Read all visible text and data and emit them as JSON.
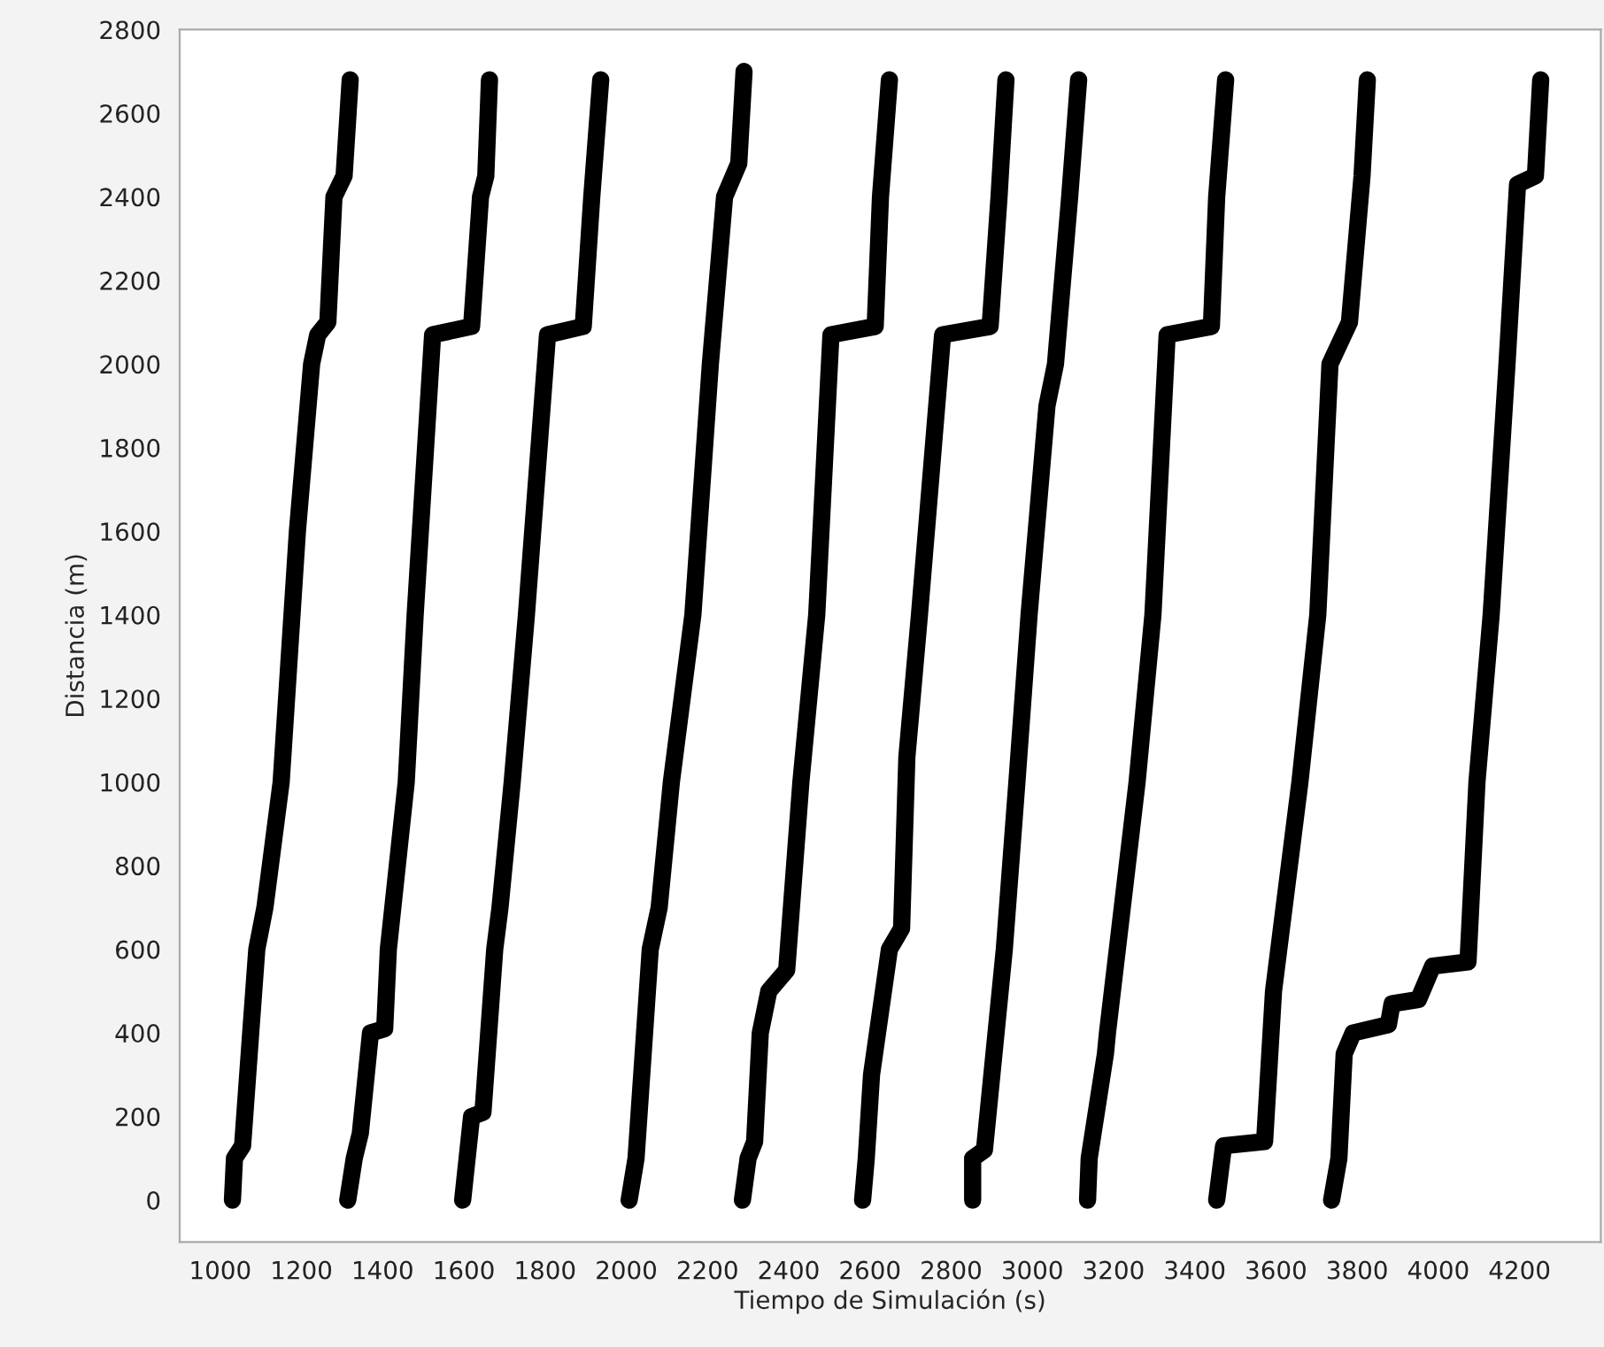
{
  "chart_data": {
    "type": "line",
    "xlabel": "Tiempo de Simulación (s)",
    "ylabel": "Distancia (m)",
    "xlim": [
      900,
      4400
    ],
    "ylim": [
      -100,
      2800
    ],
    "xticks": [
      1000,
      1200,
      1400,
      1600,
      1800,
      2000,
      2200,
      2400,
      2600,
      2800,
      3000,
      3200,
      3400,
      3600,
      3800,
      4000,
      4200
    ],
    "yticks": [
      0,
      200,
      400,
      600,
      800,
      1000,
      1200,
      1400,
      1600,
      1800,
      2000,
      2200,
      2400,
      2600,
      2800
    ],
    "grid": false,
    "legend": false,
    "marker": "none",
    "line_style": "solid",
    "series": [
      {
        "color": "#000000",
        "x": [
          1030,
          1035,
          1055,
          1075,
          1090,
          1110,
          1150,
          1190,
          1225,
          1240,
          1265,
          1280,
          1305,
          1320
        ],
        "values": [
          0,
          100,
          130,
          400,
          600,
          700,
          1000,
          1600,
          2000,
          2070,
          2100,
          2400,
          2450,
          2680
        ]
      },
      {
        "color": "#000000",
        "x": [
          1314,
          1330,
          1345,
          1370,
          1405,
          1414,
          1458,
          1480,
          1523,
          1619,
          1641,
          1654,
          1663
        ],
        "values": [
          0,
          100,
          160,
          400,
          410,
          600,
          1000,
          1400,
          2070,
          2090,
          2400,
          2450,
          2680
        ]
      },
      {
        "color": "#000000",
        "x": [
          1597,
          1619,
          1647,
          1676,
          1689,
          1719,
          1754,
          1806,
          1894,
          1915,
          1937
        ],
        "values": [
          0,
          200,
          210,
          600,
          700,
          1000,
          1400,
          2070,
          2090,
          2400,
          2680
        ]
      },
      {
        "color": "#000000",
        "x": [
          2007,
          2024,
          2059,
          2081,
          2111,
          2164,
          2207,
          2242,
          2277,
          2290
        ],
        "values": [
          0,
          100,
          600,
          700,
          1000,
          1400,
          2000,
          2400,
          2480,
          2700
        ]
      },
      {
        "color": "#000000",
        "x": [
          2286,
          2300,
          2316,
          2330,
          2351,
          2395,
          2430,
          2469,
          2504,
          2613,
          2626,
          2648
        ],
        "values": [
          0,
          100,
          140,
          400,
          500,
          550,
          1000,
          1400,
          2070,
          2090,
          2400,
          2680
        ]
      },
      {
        "color": "#000000",
        "x": [
          2582,
          2591,
          2604,
          2648,
          2678,
          2691,
          2722,
          2779,
          2896,
          2918,
          2935
        ],
        "values": [
          0,
          100,
          300,
          600,
          650,
          1060,
          1400,
          2070,
          2090,
          2400,
          2680
        ]
      },
      {
        "color": "#000000",
        "x": [
          2853,
          2853,
          2882,
          2931,
          2962,
          2992,
          3036,
          3057,
          3092,
          3114
        ],
        "values": [
          0,
          100,
          120,
          600,
          1000,
          1400,
          1900,
          2000,
          2400,
          2680
        ]
      },
      {
        "color": "#000000",
        "x": [
          3136,
          3140,
          3180,
          3185,
          3258,
          3297,
          3332,
          3441,
          3454,
          3476
        ],
        "values": [
          0,
          100,
          350,
          400,
          1000,
          1400,
          2070,
          2090,
          2400,
          2680
        ]
      },
      {
        "color": "#000000",
        "x": [
          3454,
          3471,
          3572,
          3594,
          3607,
          3659,
          3703,
          3733,
          3781,
          3812,
          3825
        ],
        "values": [
          0,
          130,
          140,
          500,
          600,
          1000,
          1400,
          2000,
          2100,
          2450,
          2680
        ]
      },
      {
        "color": "#000000",
        "x": [
          3737,
          3755,
          3768,
          3790,
          3877,
          3886,
          3951,
          3986,
          4073,
          4095,
          4130,
          4169,
          4195,
          4239,
          4252
        ],
        "values": [
          0,
          100,
          350,
          400,
          420,
          470,
          480,
          560,
          570,
          1000,
          1400,
          2000,
          2430,
          2450,
          2680
        ]
      }
    ]
  }
}
